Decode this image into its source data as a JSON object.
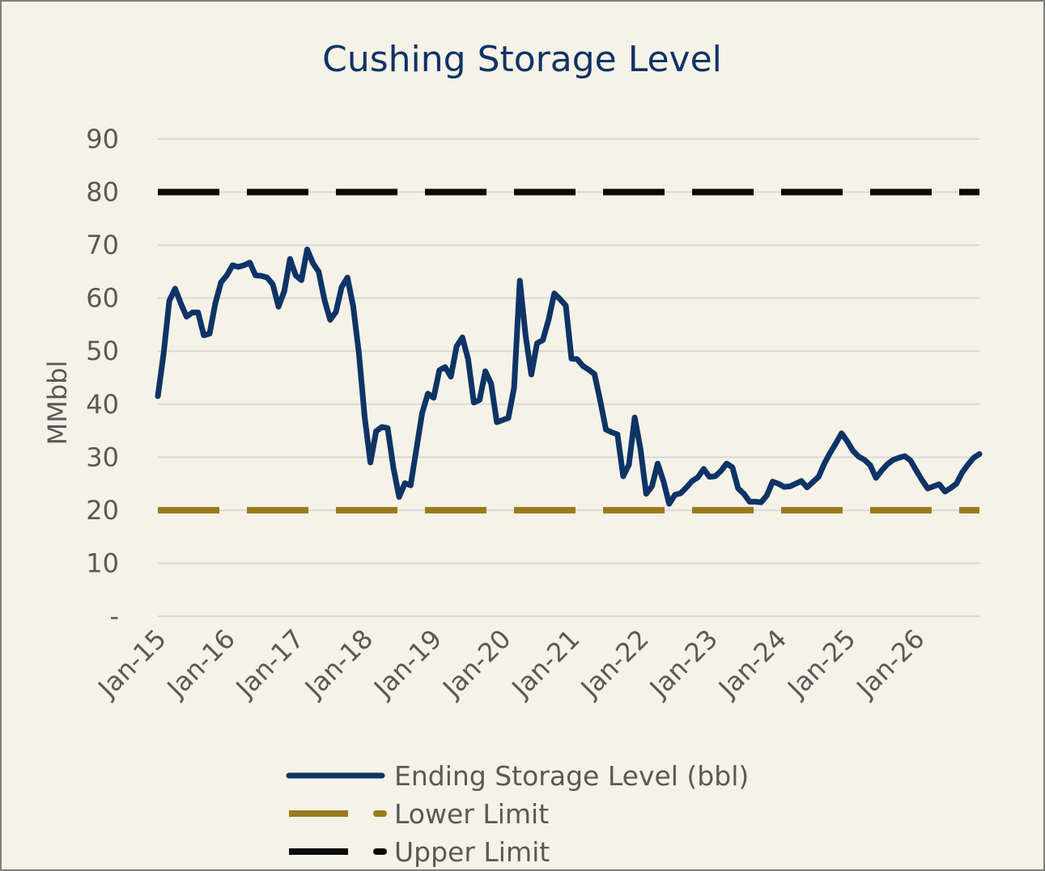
{
  "chart_data": {
    "type": "line",
    "title": "Cushing Storage Level",
    "ylabel": "MMbbl",
    "xlabel": "",
    "ylim": [
      0,
      90
    ],
    "yticks": [
      0,
      10,
      20,
      30,
      40,
      50,
      60,
      70,
      80,
      90
    ],
    "ytick_labels": [
      "-",
      "10",
      "20",
      "30",
      "40",
      "50",
      "60",
      "70",
      "80",
      "90"
    ],
    "xtick_labels": [
      "Jan-15",
      "Jan-16",
      "Jan-17",
      "Jan-18",
      "Jan-19",
      "Jan-20",
      "Jan-21",
      "Jan-22",
      "Jan-23",
      "Jan-24",
      "Jan-25",
      "Jan-26"
    ],
    "x_start": "Jan-15",
    "x_end": "Dec-26",
    "grid": true,
    "legend_position": "bottom",
    "series": [
      {
        "name": "Ending Storage Level (bbl)",
        "style": "solid",
        "color": "#0e3366",
        "x": [
          "Jan-15",
          "Feb-15",
          "Mar-15",
          "Apr-15",
          "May-15",
          "Jun-15",
          "Jul-15",
          "Aug-15",
          "Sep-15",
          "Oct-15",
          "Nov-15",
          "Dec-15",
          "Jan-16",
          "Feb-16",
          "Mar-16",
          "Apr-16",
          "May-16",
          "Jun-16",
          "Jul-16",
          "Aug-16",
          "Sep-16",
          "Oct-16",
          "Nov-16",
          "Dec-16",
          "Jan-17",
          "Feb-17",
          "Mar-17",
          "Apr-17",
          "May-17",
          "Jun-17",
          "Jul-17",
          "Aug-17",
          "Sep-17",
          "Oct-17",
          "Nov-17",
          "Dec-17",
          "Jan-18",
          "Feb-18",
          "Mar-18",
          "Apr-18",
          "May-18",
          "Jun-18",
          "Jul-18",
          "Aug-18",
          "Sep-18",
          "Oct-18",
          "Nov-18",
          "Dec-18",
          "Jan-19",
          "Feb-19",
          "Mar-19",
          "Apr-19",
          "May-19",
          "Jun-19",
          "Jul-19",
          "Aug-19",
          "Sep-19",
          "Oct-19",
          "Nov-19",
          "Dec-19",
          "Jan-20",
          "Feb-20",
          "Mar-20",
          "Apr-20",
          "May-20",
          "Jun-20",
          "Jul-20",
          "Aug-20",
          "Sep-20",
          "Oct-20",
          "Nov-20",
          "Dec-20",
          "Jan-21",
          "Feb-21",
          "Mar-21",
          "Apr-21",
          "May-21",
          "Jun-21",
          "Jul-21",
          "Aug-21",
          "Sep-21",
          "Oct-21",
          "Nov-21",
          "Dec-21",
          "Jan-22",
          "Feb-22",
          "Mar-22",
          "Apr-22",
          "May-22",
          "Jun-22",
          "Jul-22",
          "Aug-22",
          "Sep-22",
          "Oct-22",
          "Nov-22",
          "Dec-22",
          "Jan-23",
          "Feb-23",
          "Mar-23",
          "Apr-23",
          "May-23",
          "Jun-23",
          "Jul-23",
          "Aug-23",
          "Sep-23",
          "Oct-23",
          "Nov-23",
          "Dec-23",
          "Jan-24",
          "Feb-24",
          "Mar-24",
          "Apr-24",
          "May-24",
          "Jun-24",
          "Jul-24",
          "Aug-24",
          "Sep-24",
          "Oct-24",
          "Nov-24",
          "Dec-24",
          "Jan-25",
          "Feb-25",
          "Mar-25",
          "Apr-25",
          "May-25",
          "Jun-25",
          "Jul-25",
          "Aug-25",
          "Sep-25",
          "Oct-25",
          "Nov-25",
          "Dec-25",
          "Jan-26",
          "Feb-26",
          "Mar-26",
          "Apr-26",
          "May-26",
          "Jun-26",
          "Jul-26",
          "Aug-26",
          "Sep-26",
          "Oct-26",
          "Nov-26",
          "Dec-26"
        ],
        "values": [
          41.5,
          49.5,
          59.5,
          61.8,
          59.0,
          56.5,
          57.3,
          57.3,
          53.0,
          53.3,
          59.0,
          63.0,
          64.3,
          66.2,
          65.9,
          66.2,
          66.7,
          64.3,
          64.2,
          63.9,
          62.6,
          58.4,
          61.3,
          67.4,
          64.3,
          63.4,
          69.2,
          66.6,
          65.0,
          59.7,
          55.9,
          57.4,
          62.1,
          63.9,
          58.5,
          49.6,
          37.6,
          29.0,
          34.9,
          35.7,
          35.5,
          28.0,
          22.5,
          25.1,
          24.7,
          31.5,
          38.3,
          42.0,
          41.2,
          46.4,
          47.0,
          45.2,
          50.9,
          52.6,
          48.5,
          40.3,
          40.8,
          46.2,
          43.9,
          36.6,
          37.0,
          37.4,
          43.1,
          63.3,
          53.0,
          45.6,
          51.5,
          52.1,
          55.9,
          60.9,
          59.8,
          58.6,
          48.6,
          48.5,
          47.2,
          46.5,
          45.7,
          40.7,
          35.2,
          34.7,
          34.3,
          26.4,
          28.6,
          37.5,
          31.6,
          23.1,
          24.5,
          28.8,
          25.5,
          21.2,
          22.9,
          23.2,
          24.3,
          25.5,
          26.2,
          27.8,
          26.3,
          26.4,
          27.4,
          28.8,
          28.1,
          24.1,
          23.1,
          21.6,
          21.6,
          21.5,
          22.8,
          25.4,
          25.0,
          24.4,
          24.5,
          25.0,
          25.5,
          24.3,
          25.3,
          26.3,
          28.8,
          30.8,
          32.6,
          34.5,
          33.0,
          31.2,
          30.1,
          29.5,
          28.5,
          26.1,
          27.5,
          28.7,
          29.5,
          29.9,
          30.2,
          29.4,
          27.5,
          25.7,
          24.1,
          24.5,
          24.9,
          23.5,
          24.2,
          25.0,
          27.1,
          28.6,
          29.9,
          30.6
        ]
      },
      {
        "name": "Lower Limit",
        "style": "dashed",
        "color": "#9a7a1c",
        "value": 20
      },
      {
        "name": "Upper Limit",
        "style": "dashed",
        "color": "#0a0a0a",
        "value": 80
      }
    ],
    "colors": {
      "background": "#f5f2e7",
      "title": "#0e3366",
      "axis_text": "#595959",
      "gridline": "#d9d9d9"
    }
  }
}
